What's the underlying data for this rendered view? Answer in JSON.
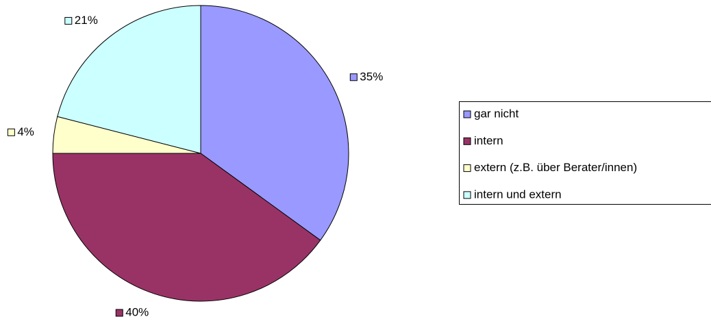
{
  "chart_data": {
    "type": "pie",
    "categories": [
      "gar nicht",
      "intern",
      "extern (z.B. über Berater/innen)",
      "intern und extern"
    ],
    "values": [
      35,
      40,
      4,
      21
    ],
    "value_labels": [
      "35%",
      "40%",
      "4%",
      "21%"
    ],
    "colors": [
      "#9999ff",
      "#993366",
      "#ffffcc",
      "#ccffff"
    ],
    "legend": "right"
  }
}
